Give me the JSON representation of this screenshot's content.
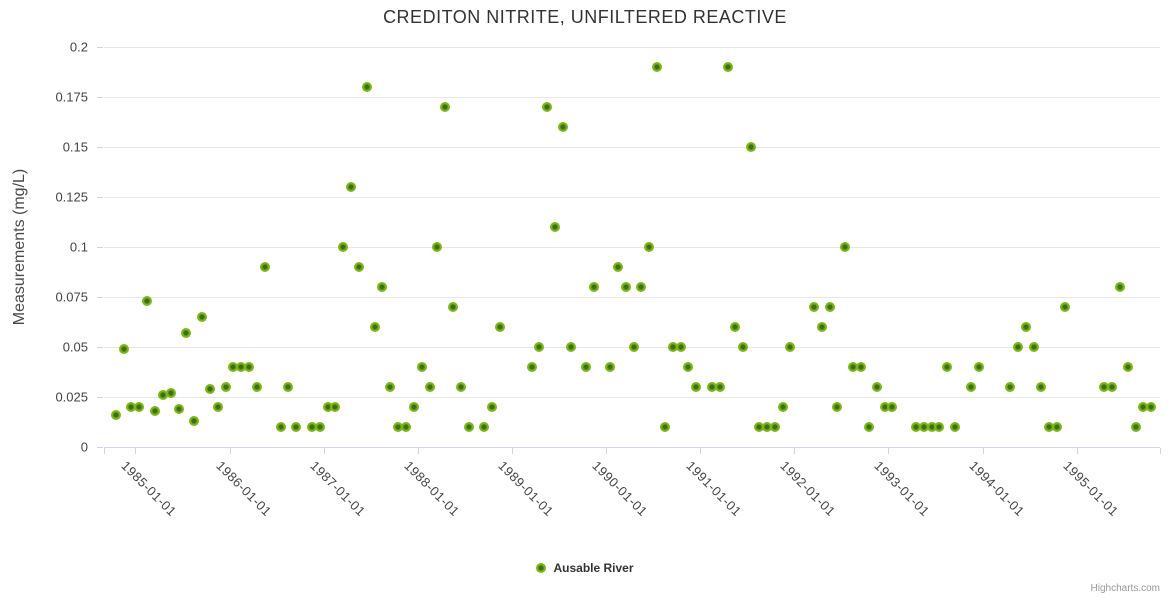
{
  "title": "CREDITON NITRITE, UNFILTERED REACTIVE",
  "legend": {
    "series_label": "Ausable River"
  },
  "credits_label": "Highcharts.com",
  "colors": {
    "marker_outer": "#7cb518",
    "marker_inner": "#3c6e14",
    "grid": "#e6e6e6",
    "axis": "#ccd6eb",
    "title_text": "#333333",
    "label_text": "#444444"
  },
  "chart_data": {
    "type": "scatter",
    "title": "CREDITON NITRITE, UNFILTERED REACTIVE",
    "xlabel": "",
    "ylabel": "Measurements (mg/L)",
    "grid": true,
    "legend_position": "bottom-center",
    "ylim": [
      0,
      0.2
    ],
    "ytick_values": [
      0,
      0.025,
      0.05,
      0.075,
      0.1,
      0.125,
      0.15,
      0.175,
      0.2
    ],
    "ytick_labels": [
      "0",
      "0.025",
      "0.05",
      "0.075",
      "0.1",
      "0.125",
      "0.15",
      "0.175",
      "0.2"
    ],
    "xtick_labels": [
      "1985-01-01",
      "1986-01-01",
      "1987-01-01",
      "1988-01-01",
      "1989-01-01",
      "1990-01-01",
      "1991-01-01",
      "1992-01-01",
      "1993-01-01",
      "1994-01-01",
      "1995-01-01"
    ],
    "xlim_yearfrac": [
      1984.6664,
      1995.885
    ],
    "series": [
      {
        "name": "Ausable River",
        "points": [
          [
            "1984-10",
            0.016
          ],
          [
            "1984-11",
            0.049
          ],
          [
            "1984-12",
            0.02
          ],
          [
            "1985-01",
            0.02
          ],
          [
            "1985-02",
            0.073
          ],
          [
            "1985-03",
            0.018
          ],
          [
            "1985-04",
            0.026
          ],
          [
            "1985-05",
            0.027
          ],
          [
            "1985-06",
            0.019
          ],
          [
            "1985-07",
            0.057
          ],
          [
            "1985-08",
            0.013
          ],
          [
            "1985-09",
            0.065
          ],
          [
            "1985-10",
            0.029
          ],
          [
            "1985-11",
            0.02
          ],
          [
            "1985-12",
            0.03
          ],
          [
            "1986-01",
            0.04
          ],
          [
            "1986-02",
            0.04
          ],
          [
            "1986-03",
            0.04
          ],
          [
            "1986-04",
            0.03
          ],
          [
            "1986-05",
            0.09
          ],
          [
            "1986-07",
            0.01
          ],
          [
            "1986-08",
            0.03
          ],
          [
            "1986-09",
            0.01
          ],
          [
            "1986-11",
            0.01
          ],
          [
            "1986-12",
            0.01
          ],
          [
            "1987-01",
            0.02
          ],
          [
            "1987-02",
            0.02
          ],
          [
            "1987-03",
            0.1
          ],
          [
            "1987-04",
            0.13
          ],
          [
            "1987-05",
            0.09
          ],
          [
            "1987-06",
            0.18
          ],
          [
            "1987-07",
            0.06
          ],
          [
            "1987-08",
            0.08
          ],
          [
            "1987-09",
            0.03
          ],
          [
            "1987-10",
            0.01
          ],
          [
            "1987-11",
            0.01
          ],
          [
            "1987-12",
            0.02
          ],
          [
            "1988-01",
            0.04
          ],
          [
            "1988-02",
            0.03
          ],
          [
            "1988-03",
            0.1
          ],
          [
            "1988-04",
            0.17
          ],
          [
            "1988-05",
            0.07
          ],
          [
            "1988-06",
            0.03
          ],
          [
            "1988-07",
            0.01
          ],
          [
            "1988-09",
            0.01
          ],
          [
            "1988-10",
            0.02
          ],
          [
            "1988-11",
            0.06
          ],
          [
            "1989-03",
            0.04
          ],
          [
            "1989-04",
            0.05
          ],
          [
            "1989-05",
            0.17
          ],
          [
            "1989-06",
            0.11
          ],
          [
            "1989-07",
            0.16
          ],
          [
            "1989-08",
            0.05
          ],
          [
            "1989-10",
            0.04
          ],
          [
            "1989-11",
            0.08
          ],
          [
            "1990-01",
            0.04
          ],
          [
            "1990-02",
            0.09
          ],
          [
            "1990-03",
            0.08
          ],
          [
            "1990-04",
            0.05
          ],
          [
            "1990-05",
            0.08
          ],
          [
            "1990-06",
            0.1
          ],
          [
            "1990-07",
            0.19
          ],
          [
            "1990-08",
            0.01
          ],
          [
            "1990-09",
            0.05
          ],
          [
            "1990-10",
            0.05
          ],
          [
            "1990-11",
            0.04
          ],
          [
            "1990-12",
            0.03
          ],
          [
            "1991-02",
            0.03
          ],
          [
            "1991-03",
            0.03
          ],
          [
            "1991-04",
            0.19
          ],
          [
            "1991-05",
            0.06
          ],
          [
            "1991-06",
            0.05
          ],
          [
            "1991-07",
            0.15
          ],
          [
            "1991-08",
            0.01
          ],
          [
            "1991-09",
            0.01
          ],
          [
            "1991-10",
            0.01
          ],
          [
            "1991-11",
            0.02
          ],
          [
            "1991-12",
            0.05
          ],
          [
            "1992-03",
            0.07
          ],
          [
            "1992-04",
            0.06
          ],
          [
            "1992-05",
            0.07
          ],
          [
            "1992-06",
            0.02
          ],
          [
            "1992-07",
            0.1
          ],
          [
            "1992-08",
            0.04
          ],
          [
            "1992-09",
            0.04
          ],
          [
            "1992-10",
            0.01
          ],
          [
            "1992-11",
            0.03
          ],
          [
            "1992-12",
            0.02
          ],
          [
            "1993-01",
            0.02
          ],
          [
            "1993-04",
            0.01
          ],
          [
            "1993-05",
            0.01
          ],
          [
            "1993-06",
            0.01
          ],
          [
            "1993-07",
            0.01
          ],
          [
            "1993-08",
            0.04
          ],
          [
            "1993-09",
            0.01
          ],
          [
            "1993-11",
            0.03
          ],
          [
            "1993-12",
            0.04
          ],
          [
            "1994-04",
            0.03
          ],
          [
            "1994-05",
            0.05
          ],
          [
            "1994-06",
            0.06
          ],
          [
            "1994-07",
            0.05
          ],
          [
            "1994-08",
            0.03
          ],
          [
            "1994-09",
            0.01
          ],
          [
            "1994-10",
            0.01
          ],
          [
            "1994-11",
            0.07
          ],
          [
            "1995-04",
            0.03
          ],
          [
            "1995-05",
            0.03
          ],
          [
            "1995-06",
            0.08
          ],
          [
            "1995-07",
            0.04
          ],
          [
            "1995-08",
            0.01
          ],
          [
            "1995-09",
            0.02
          ],
          [
            "1995-10",
            0.02
          ]
        ]
      }
    ]
  }
}
